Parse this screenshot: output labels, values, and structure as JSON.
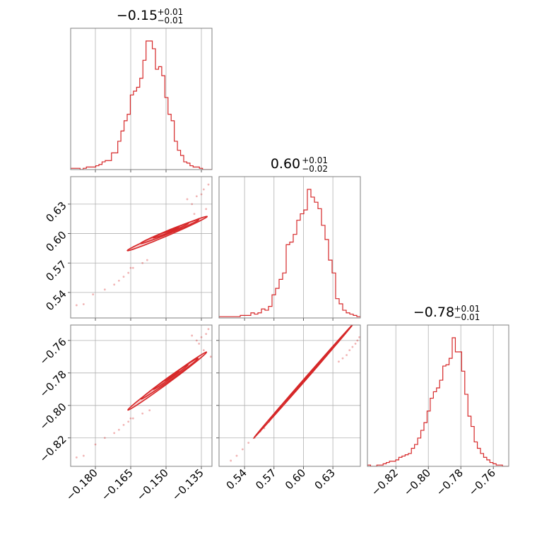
{
  "chart_data": {
    "type": "corner",
    "colors": {
      "main": "#d62728",
      "light": "#f4a6a8",
      "frame": "#7f7f7f",
      "grid": "#b0b0b0"
    },
    "parameters": [
      {
        "id": "p0",
        "title_main": "−0.15",
        "title_sup": "+0.01",
        "title_sub": "−0.01",
        "range": [
          -0.1905,
          -0.1305
        ],
        "ticks": [
          -0.18,
          -0.165,
          -0.15,
          -0.135
        ],
        "tick_labels": [
          "−0.180",
          "−0.165",
          "−0.150",
          "−0.135"
        ]
      },
      {
        "id": "p1",
        "title_main": "0.60",
        "title_sup": "+0.01",
        "title_sub": "−0.02",
        "range": [
          0.514,
          0.658
        ],
        "ticks": [
          0.54,
          0.57,
          0.6,
          0.63
        ],
        "tick_labels": [
          "0.54",
          "0.57",
          "0.60",
          "0.63"
        ]
      },
      {
        "id": "p2",
        "title_main": "−0.78",
        "title_sup": "+0.01",
        "title_sub": "−0.01",
        "range": [
          -0.8375,
          -0.7505
        ],
        "ticks": [
          -0.82,
          -0.8,
          -0.78,
          -0.76
        ],
        "tick_labels": [
          "−0.82",
          "−0.80",
          "−0.78",
          "−0.76"
        ]
      }
    ],
    "histograms": [
      {
        "param": "p0",
        "counts": [
          1,
          1,
          1,
          0,
          1,
          2,
          2,
          2,
          3,
          4,
          6,
          7,
          7,
          13,
          13,
          22,
          30,
          38,
          43,
          58,
          61,
          64,
          71,
          85,
          100,
          100,
          94,
          78,
          80,
          73,
          56,
          43,
          38,
          22,
          15,
          11,
          6,
          5,
          3,
          2,
          2,
          1,
          0,
          0,
          0
        ]
      },
      {
        "param": "p1",
        "counts": [
          1,
          1,
          1,
          1,
          1,
          1,
          2,
          2,
          2,
          4,
          3,
          4,
          7,
          6,
          9,
          18,
          23,
          30,
          35,
          57,
          59,
          65,
          76,
          81,
          84,
          100,
          94,
          90,
          85,
          72,
          61,
          45,
          35,
          15,
          11,
          6,
          4,
          3,
          2,
          1
        ]
      },
      {
        "param": "p2",
        "counts": [
          1,
          0,
          0,
          1,
          1,
          2,
          3,
          4,
          4,
          5,
          7,
          8,
          9,
          10,
          14,
          17,
          22,
          28,
          34,
          43,
          53,
          58,
          61,
          67,
          78,
          79,
          84,
          100,
          89,
          89,
          74,
          56,
          39,
          31,
          19,
          14,
          10,
          7,
          5,
          3,
          2,
          1,
          1,
          0,
          0
        ]
      }
    ],
    "scatter_panels": [
      {
        "x": "p0",
        "y": "p1",
        "points": [
          [
            -0.188,
            0.527
          ],
          [
            -0.185,
            0.528
          ],
          [
            -0.181,
            0.538
          ],
          [
            -0.176,
            0.543
          ],
          [
            -0.172,
            0.548
          ],
          [
            -0.168,
            0.556
          ],
          [
            -0.165,
            0.565
          ],
          [
            -0.164,
            0.565
          ],
          [
            -0.16,
            0.57
          ],
          [
            -0.158,
            0.573
          ],
          [
            -0.139,
            0.63
          ],
          [
            -0.137,
            0.638
          ],
          [
            -0.135,
            0.64
          ],
          [
            -0.134,
            0.645
          ],
          [
            -0.132,
            0.65
          ],
          [
            -0.138,
            0.62
          ],
          [
            -0.136,
            0.615
          ],
          [
            -0.141,
            0.635
          ],
          [
            -0.133,
            0.625
          ],
          [
            -0.17,
            0.552
          ],
          [
            -0.166,
            0.56
          ]
        ],
        "contour_levels": [
          {
            "cx": -0.1495,
            "cy": 0.6,
            "a": 0.0243,
            "b": 0.0016,
            "angle": 45.9
          },
          {
            "cx": -0.1485,
            "cy": 0.602,
            "a": 0.0173,
            "b": 0.0013,
            "angle": 44.6
          },
          {
            "cx": -0.148,
            "cy": 0.603,
            "a": 0.0104,
            "b": 0.00085,
            "angle": 45.0
          },
          {
            "cx": -0.1476,
            "cy": 0.604,
            "a": 0.0042,
            "b": 0.0005,
            "angle": 44.0
          }
        ]
      },
      {
        "x": "p0",
        "y": "p2",
        "points": [
          [
            -0.188,
            -0.832
          ],
          [
            -0.185,
            -0.831
          ],
          [
            -0.18,
            -0.824
          ],
          [
            -0.176,
            -0.82
          ],
          [
            -0.172,
            -0.817
          ],
          [
            -0.168,
            -0.812
          ],
          [
            -0.165,
            -0.808
          ],
          [
            -0.164,
            -0.808
          ],
          [
            -0.16,
            -0.805
          ],
          [
            -0.157,
            -0.803
          ],
          [
            -0.137,
            -0.76
          ],
          [
            -0.135,
            -0.758
          ],
          [
            -0.133,
            -0.756
          ],
          [
            -0.132,
            -0.753
          ],
          [
            -0.134,
            -0.766
          ],
          [
            -0.136,
            -0.762
          ],
          [
            -0.139,
            -0.757
          ],
          [
            -0.131,
            -0.77
          ],
          [
            -0.17,
            -0.815
          ],
          [
            -0.166,
            -0.81
          ]
        ],
        "contour_levels": [
          {
            "cx": -0.1495,
            "cy": -0.785,
            "a": 0.0244,
            "b": 0.00115,
            "angle": 46.9
          },
          {
            "cx": -0.1485,
            "cy": -0.7835,
            "a": 0.0174,
            "b": 0.0009,
            "angle": 46.1
          },
          {
            "cx": -0.148,
            "cy": -0.7825,
            "a": 0.0105,
            "b": 0.0006,
            "angle": 46.0
          },
          {
            "cx": -0.1476,
            "cy": -0.7818,
            "a": 0.0042,
            "b": 0.00035,
            "angle": 45.0
          }
        ]
      },
      {
        "x": "p1",
        "y": "p2",
        "points": [
          [
            0.526,
            -0.834
          ],
          [
            0.532,
            -0.831
          ],
          [
            0.538,
            -0.827
          ],
          [
            0.544,
            -0.823
          ],
          [
            0.55,
            -0.82
          ],
          [
            0.556,
            -0.816
          ],
          [
            0.56,
            -0.814
          ],
          [
            0.565,
            -0.81
          ],
          [
            0.57,
            -0.806
          ],
          [
            0.575,
            -0.802
          ],
          [
            0.64,
            -0.771
          ],
          [
            0.644,
            -0.769
          ],
          [
            0.647,
            -0.766
          ],
          [
            0.65,
            -0.764
          ],
          [
            0.653,
            -0.762
          ],
          [
            0.655,
            -0.76
          ],
          [
            0.657,
            -0.758
          ],
          [
            0.636,
            -0.773
          ]
        ],
        "contour_levels": [
          {
            "cx": 0.6,
            "cy": -0.785,
            "a": 0.061,
            "b": 0.0007,
            "angle": 34.7
          },
          {
            "cx": 0.602,
            "cy": -0.7838,
            "a": 0.044,
            "b": 0.0006,
            "angle": 34.7
          },
          {
            "cx": 0.6035,
            "cy": -0.783,
            "a": 0.026,
            "b": 0.0004,
            "angle": 34.7
          },
          {
            "cx": 0.604,
            "cy": -0.7825,
            "a": 0.01,
            "b": 0.0003,
            "angle": 34.7
          }
        ]
      }
    ]
  }
}
